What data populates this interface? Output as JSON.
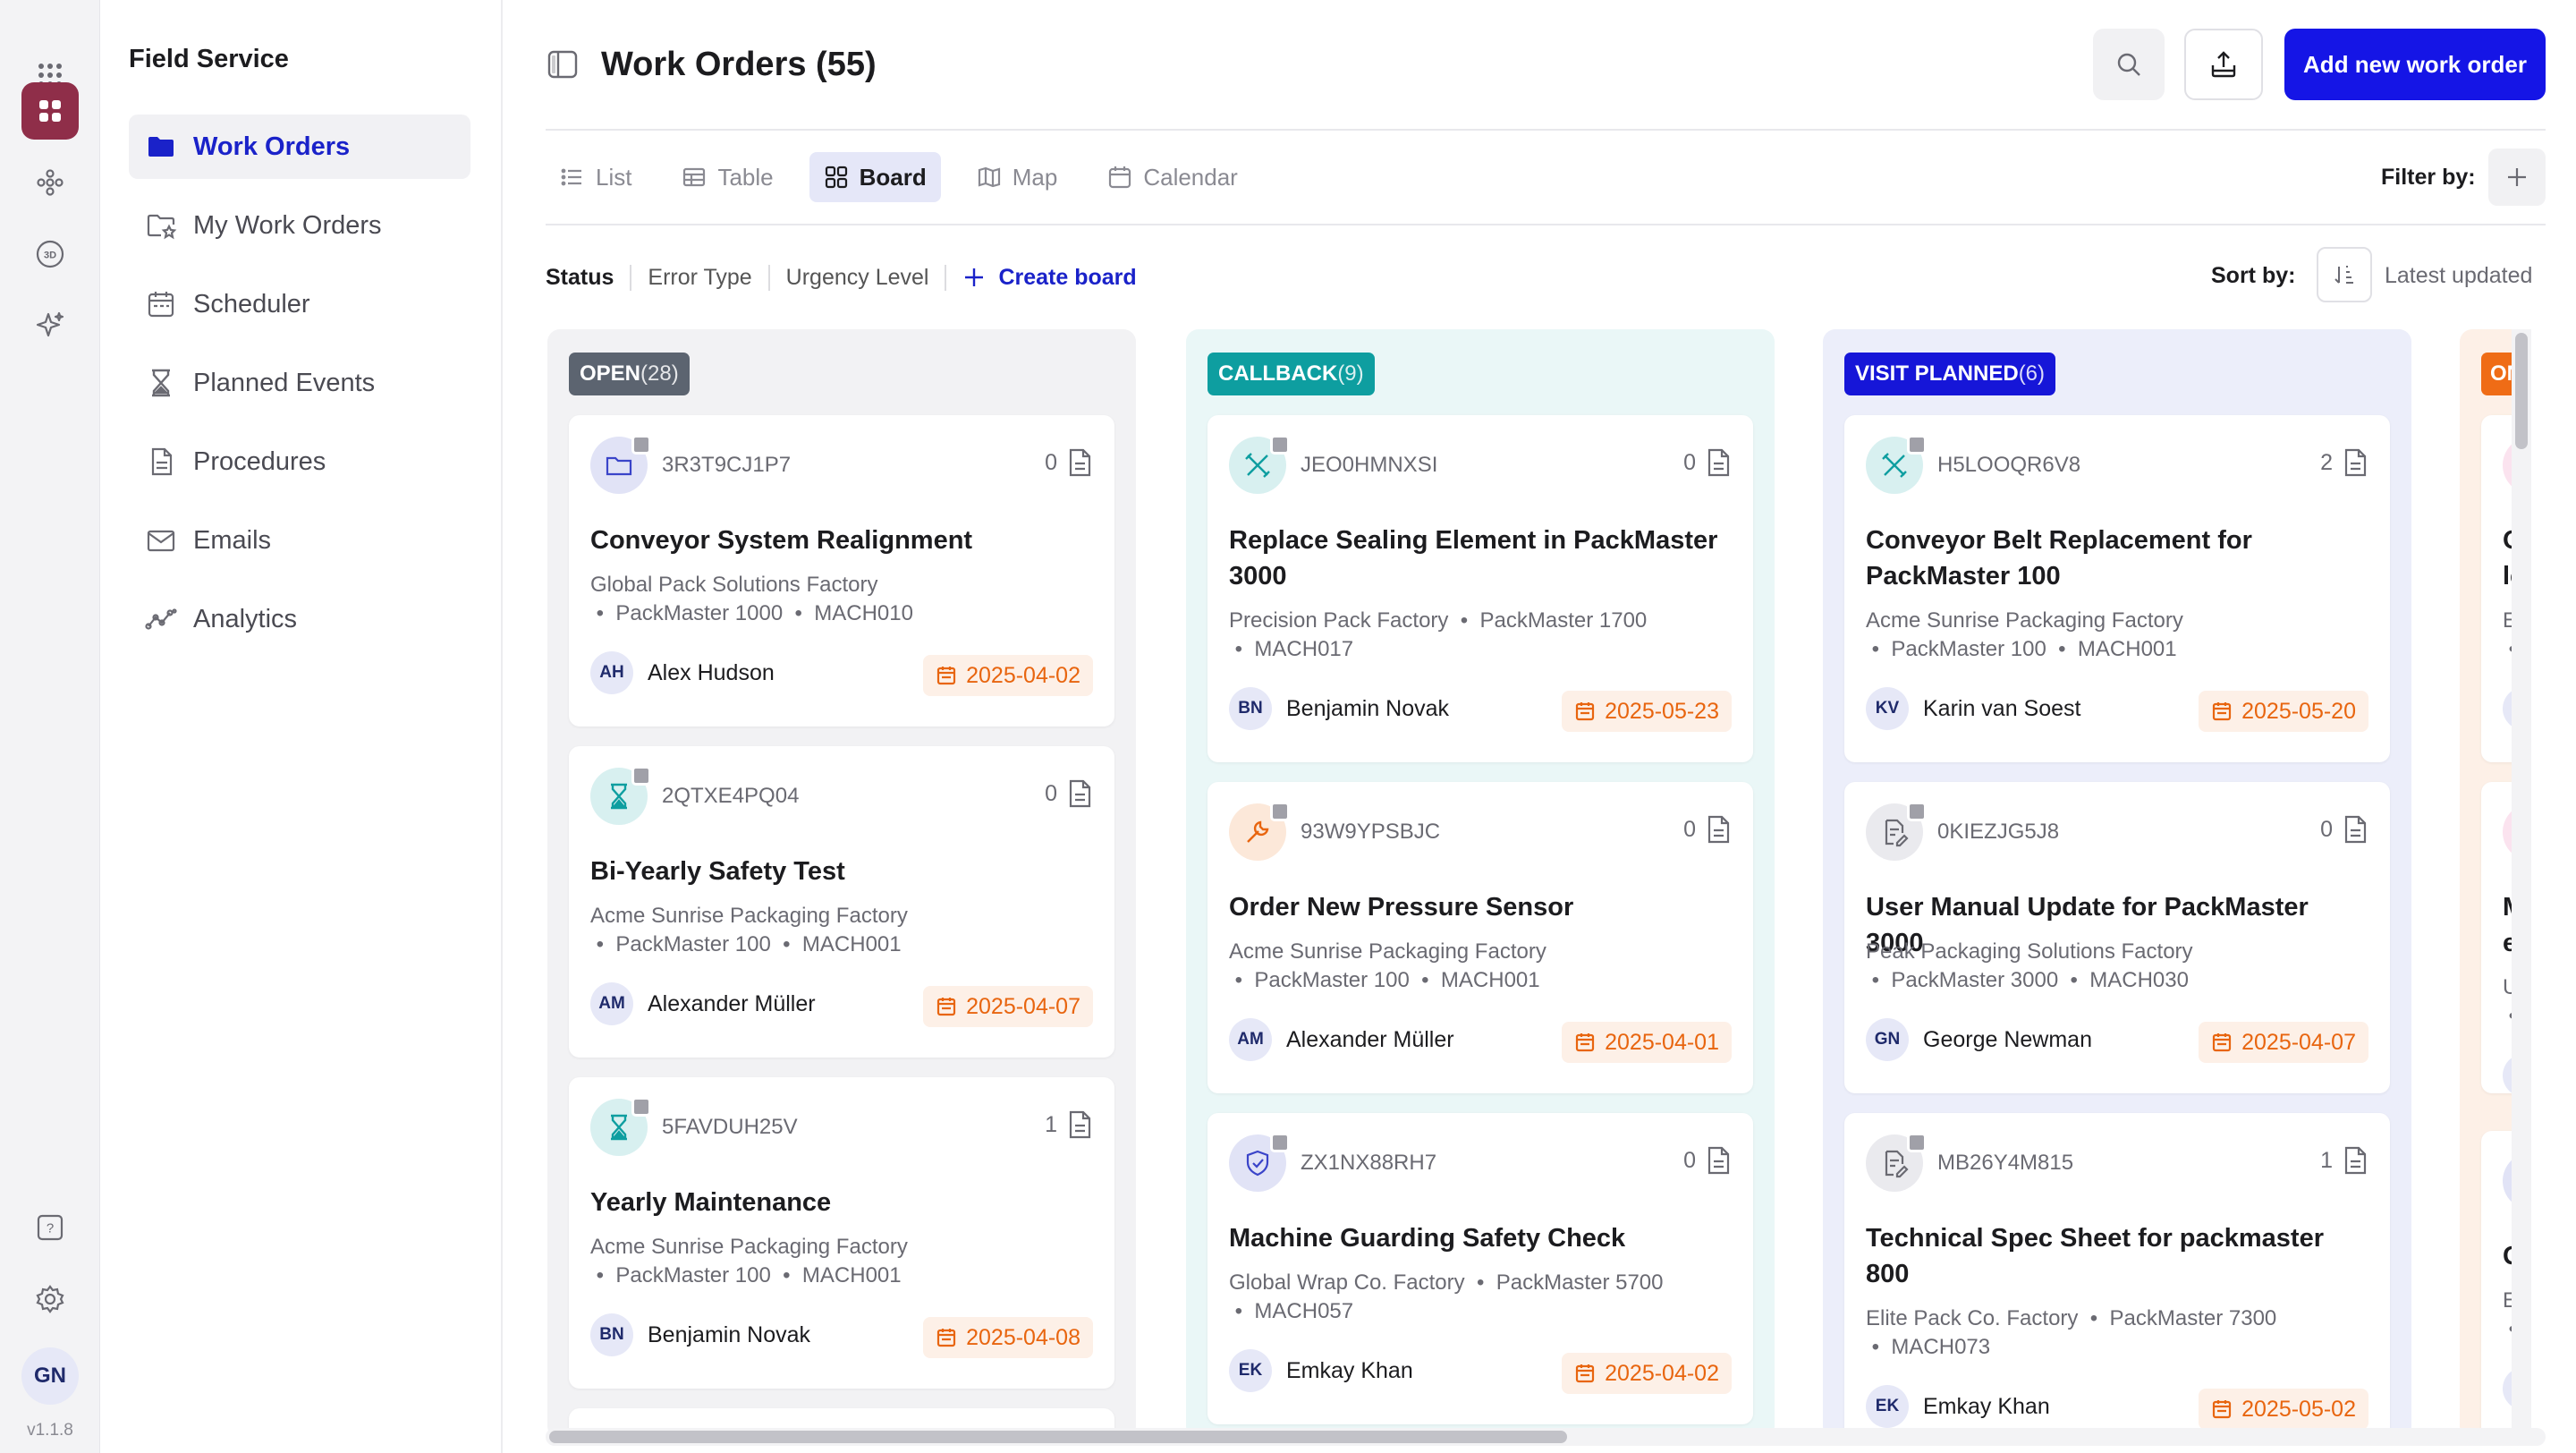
{
  "rail": {
    "version": "v1.1.8",
    "avatar": "GN"
  },
  "nav": {
    "title": "Field Service",
    "items": [
      {
        "label": "Work Orders",
        "icon": "folder-icon",
        "active": true
      },
      {
        "label": "My Work Orders",
        "icon": "folder-star-icon"
      },
      {
        "label": "Scheduler",
        "icon": "calendar-icon"
      },
      {
        "label": "Planned Events",
        "icon": "hourglass-icon"
      },
      {
        "label": "Procedures",
        "icon": "document-icon"
      },
      {
        "label": "Emails",
        "icon": "mail-icon"
      },
      {
        "label": "Analytics",
        "icon": "analytics-icon"
      }
    ]
  },
  "header": {
    "title": "Work Orders (55)",
    "add_label": "Add new work order"
  },
  "views": {
    "tabs": [
      "List",
      "Table",
      "Board",
      "Map",
      "Calendar"
    ],
    "active": "Board",
    "filter_label": "Filter by:"
  },
  "board": {
    "tabs": [
      "Status",
      "Error Type",
      "Urgency Level"
    ],
    "create_label": "Create board",
    "sort_label": "Sort by:",
    "sort_value": "Latest updated"
  },
  "colors": {
    "open": "#5c6470",
    "callback": "#0e9ea0",
    "visit_planned": "#1616d8",
    "ongoing": "#ef6c16",
    "date_text": "#e8650f",
    "primary": "#1515e6"
  },
  "columns": [
    {
      "label": "OPEN",
      "count": "(28)",
      "cards": [
        {
          "code": "3R3T9CJ1P7",
          "files": "0",
          "title": "Conveyor System Realignment",
          "site": "Global Pack Solutions Factory",
          "machine": "PackMaster 1000",
          "mach_id": "MACH010",
          "initials": "AH",
          "user": "Alex Hudson",
          "date": "2025-04-02",
          "icon": "folder-icon"
        },
        {
          "code": "2QTXE4PQ04",
          "files": "0",
          "title": "Bi-Yearly Safety Test",
          "site": "Acme Sunrise Packaging Factory",
          "machine": "PackMaster 100",
          "mach_id": "MACH001",
          "initials": "AM",
          "user": "Alexander Müller",
          "date": "2025-04-07",
          "icon": "hourglass-icon"
        },
        {
          "code": "5FAVDUH25V",
          "files": "1",
          "title": "Yearly Maintenance",
          "site": "Acme Sunrise Packaging Factory",
          "machine": "PackMaster 100",
          "mach_id": "MACH001",
          "initials": "BN",
          "user": "Benjamin Novak",
          "date": "2025-04-08",
          "icon": "hourglass-icon"
        }
      ]
    },
    {
      "label": "CALLBACK",
      "count": "(9)",
      "cards": [
        {
          "code": "JEO0HMNXSI",
          "files": "0",
          "title": "Replace Sealing Element in PackMaster 3000",
          "site": "Precision Pack Factory",
          "machine": "PackMaster 1700",
          "mach_id": "MACH017",
          "initials": "BN",
          "user": "Benjamin Novak",
          "date": "2025-05-23",
          "icon": "tools-icon"
        },
        {
          "code": "93W9YPSBJC",
          "files": "0",
          "title": "Order New Pressure Sensor",
          "site": "Acme Sunrise Packaging Factory",
          "machine": "PackMaster 100",
          "mach_id": "MACH001",
          "initials": "AM",
          "user": "Alexander Müller",
          "date": "2025-04-01",
          "icon": "wrench-icon"
        },
        {
          "code": "ZX1NX88RH7",
          "files": "0",
          "title": "Machine Guarding Safety Check",
          "site": "Global Wrap Co. Factory",
          "machine": "PackMaster 5700",
          "mach_id": "MACH057",
          "initials": "EK",
          "user": "Emkay Khan",
          "date": "2025-04-02",
          "icon": "shield-icon"
        }
      ]
    },
    {
      "label": "VISIT PLANNED",
      "count": "(6)",
      "cards": [
        {
          "code": "H5LOOQR6V8",
          "files": "2",
          "title": "Conveyor Belt Replacement for PackMaster 100",
          "site": "Acme Sunrise Packaging Factory",
          "machine": "PackMaster 100",
          "mach_id": "MACH001",
          "initials": "KV",
          "user": "Karin van Soest",
          "date": "2025-05-20",
          "icon": "tools-icon"
        },
        {
          "code": "0KIEZJG5J8",
          "files": "0",
          "title": "User Manual Update for PackMaster 3000",
          "site": "Peak Packaging Solutions Factory",
          "machine": "PackMaster 3000",
          "mach_id": "MACH030",
          "initials": "GN",
          "user": "George Newman",
          "date": "2025-04-07",
          "icon": "doc-edit-icon"
        },
        {
          "code": "MB26Y4M815",
          "files": "1",
          "title": "Technical Spec Sheet for packmaster 800",
          "site": "Elite Pack Co. Factory",
          "machine": "PackMaster 7300",
          "mach_id": "MACH073",
          "initials": "EK",
          "user": "Emkay Khan",
          "date": "2025-05-02",
          "icon": "doc-edit-icon"
        }
      ]
    },
    {
      "label": "ON",
      "count": "",
      "cards": [
        {
          "title": "O",
          "title2": "lc",
          "site": "Ef",
          "initials": "A"
        },
        {
          "title": "M",
          "title2": "er",
          "site": "Ul",
          "initials": "H"
        },
        {
          "title": "G",
          "title2": "",
          "site": "Ef",
          "initials": "E"
        }
      ]
    }
  ]
}
